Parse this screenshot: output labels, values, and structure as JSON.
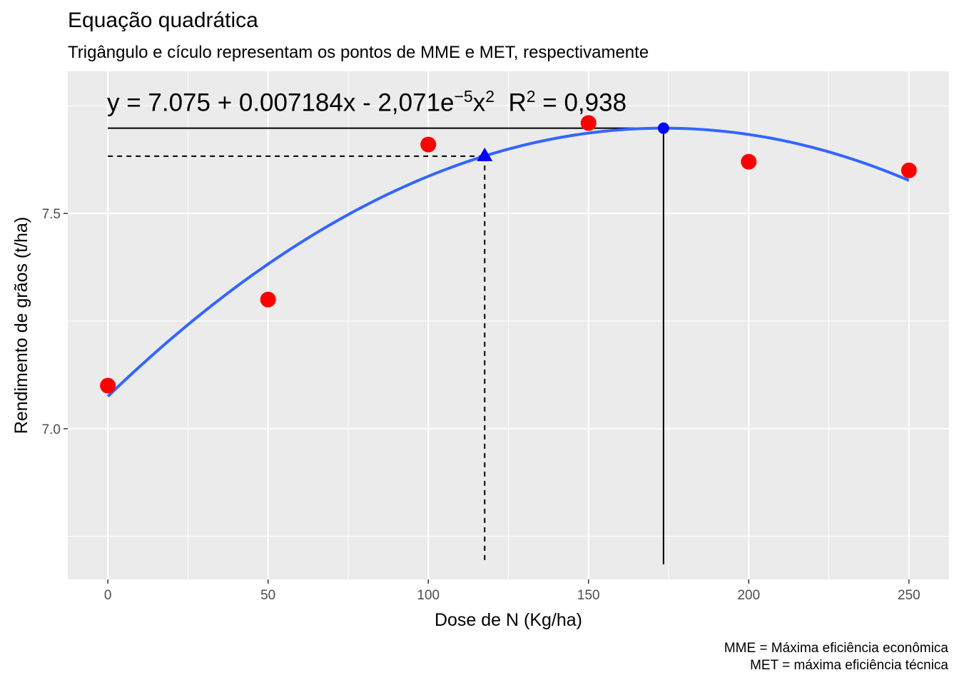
{
  "chart_data": {
    "type": "scatter",
    "title": "Equação quadrática",
    "subtitle": "Trigângulo e cículo representam os pontos de MME e MET, respectivamente",
    "xlabel": "Dose de N (Kg/ha)",
    "ylabel": "Rendimento de grãos (t/ha)",
    "xlim": [
      -12.5,
      262.5
    ],
    "ylim": [
      6.65,
      7.83
    ],
    "x_ticks": [
      0,
      50,
      100,
      150,
      200,
      250
    ],
    "x_tick_labels": [
      "0",
      "50",
      "100",
      "150",
      "200",
      "250"
    ],
    "y_ticks": [
      7.0,
      7.5
    ],
    "y_tick_labels": [
      "7.0",
      "7.5"
    ],
    "grid": true,
    "series": [
      {
        "type": "scatter",
        "color": "#ff0000",
        "x": [
          0,
          50,
          100,
          150,
          200,
          250
        ],
        "y": [
          7.1,
          7.3,
          7.66,
          7.71,
          7.62,
          7.6
        ]
      },
      {
        "type": "line",
        "color": "#3366ff",
        "coefficients": {
          "a": 7.075,
          "b": 0.007184,
          "c": -2.071e-05
        },
        "x_range": [
          0,
          250
        ]
      }
    ],
    "mme": {
      "x": 117.6,
      "y": 7.633,
      "marker": "triangle",
      "color": "#0000ff"
    },
    "met": {
      "x": 173.4,
      "y": 7.698,
      "marker": "circle",
      "color": "#0000ff"
    },
    "equation": {
      "main": "y = 7.075 + 0.007184x - 2,071e",
      "exp": "−5",
      "x": "x",
      "x_exp": "2",
      "r": "R",
      "r_exp": "2",
      "r_val": " = 0,938"
    },
    "caption": [
      "MME = Máxima eficiência econômica",
      "MET = máxima eficiência técnica"
    ]
  }
}
